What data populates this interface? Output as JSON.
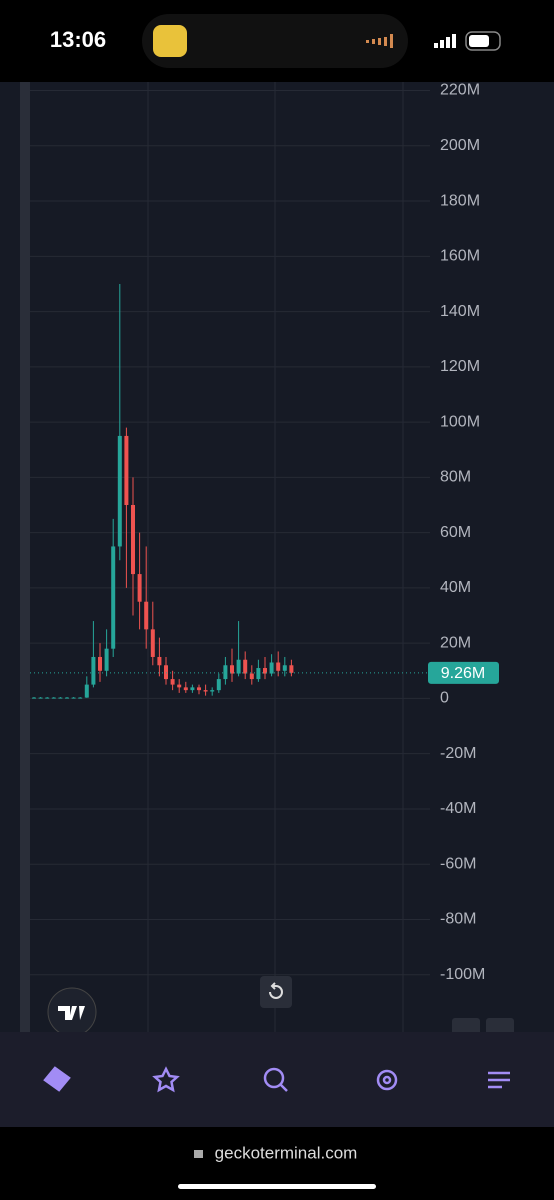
{
  "status_bar": {
    "time": "13:06"
  },
  "chart_data": {
    "type": "candlestick",
    "categories": [
      null,
      null,
      null,
      null,
      null,
      null,
      null,
      null,
      null,
      null,
      null,
      null,
      null,
      null,
      null,
      null,
      null,
      null,
      null,
      null,
      null,
      null,
      null,
      null,
      null,
      null,
      null,
      null,
      null,
      null,
      null,
      null,
      null,
      null,
      null,
      null,
      null,
      null,
      null,
      null
    ],
    "open": [
      0.3,
      0.3,
      0.3,
      0.3,
      0.3,
      0.3,
      0.3,
      0.3,
      0.3,
      5,
      15,
      10,
      18,
      55,
      95,
      70,
      45,
      35,
      25,
      15,
      12,
      7,
      5,
      4,
      3,
      4,
      3,
      2.5,
      3,
      7,
      12,
      9,
      14,
      9,
      7,
      11,
      9,
      13,
      10,
      12
    ],
    "high": [
      0.5,
      0.5,
      0.5,
      0.5,
      0.5,
      0.5,
      0.5,
      0.5,
      8,
      28,
      20,
      25,
      65,
      150,
      98,
      80,
      60,
      55,
      35,
      22,
      15,
      10,
      7,
      6,
      5,
      5,
      5,
      4,
      9,
      15,
      18,
      28,
      17,
      12,
      14,
      15,
      16,
      17,
      15,
      14
    ],
    "low": [
      0.2,
      0.2,
      0.2,
      0.2,
      0.2,
      0.2,
      0.2,
      0.2,
      0.2,
      4,
      6,
      8,
      15,
      50,
      40,
      30,
      25,
      18,
      12,
      8,
      5,
      3,
      2,
      2,
      2,
      1.5,
      1,
      1,
      2,
      5,
      6,
      8,
      7,
      5,
      6,
      7,
      8,
      8,
      8,
      8
    ],
    "close": [
      0.3,
      0.3,
      0.3,
      0.3,
      0.3,
      0.3,
      0.3,
      0.3,
      5,
      15,
      10,
      18,
      55,
      95,
      70,
      45,
      35,
      25,
      15,
      12,
      7,
      5,
      4,
      3,
      4,
      3,
      2.5,
      3,
      7,
      12,
      9,
      14,
      9,
      7,
      11,
      9,
      13,
      10,
      12,
      9.26
    ],
    "up_color": "#26a69a",
    "down_color": "#ef5350",
    "ylim": [
      -120,
      222
    ],
    "yticks": [
      {
        "value": 220,
        "label": "220M"
      },
      {
        "value": 200,
        "label": "200M"
      },
      {
        "value": 180,
        "label": "180M"
      },
      {
        "value": 160,
        "label": "160M"
      },
      {
        "value": 140,
        "label": "140M"
      },
      {
        "value": 120,
        "label": "120M"
      },
      {
        "value": 100,
        "label": "100M"
      },
      {
        "value": 80,
        "label": "80M"
      },
      {
        "value": 60,
        "label": "60M"
      },
      {
        "value": 40,
        "label": "40M"
      },
      {
        "value": 20,
        "label": "20M"
      },
      0,
      {
        "value": -20,
        "label": "-20M"
      },
      {
        "value": -40,
        "label": "-40M"
      },
      {
        "value": -60,
        "label": "-60M"
      },
      {
        "value": -80,
        "label": "-80M"
      },
      {
        "value": -100,
        "label": "-100M"
      }
    ],
    "last_price": {
      "value": 9.26,
      "label": "9.26M"
    },
    "grid": true
  },
  "url": "geckoterminal.com"
}
